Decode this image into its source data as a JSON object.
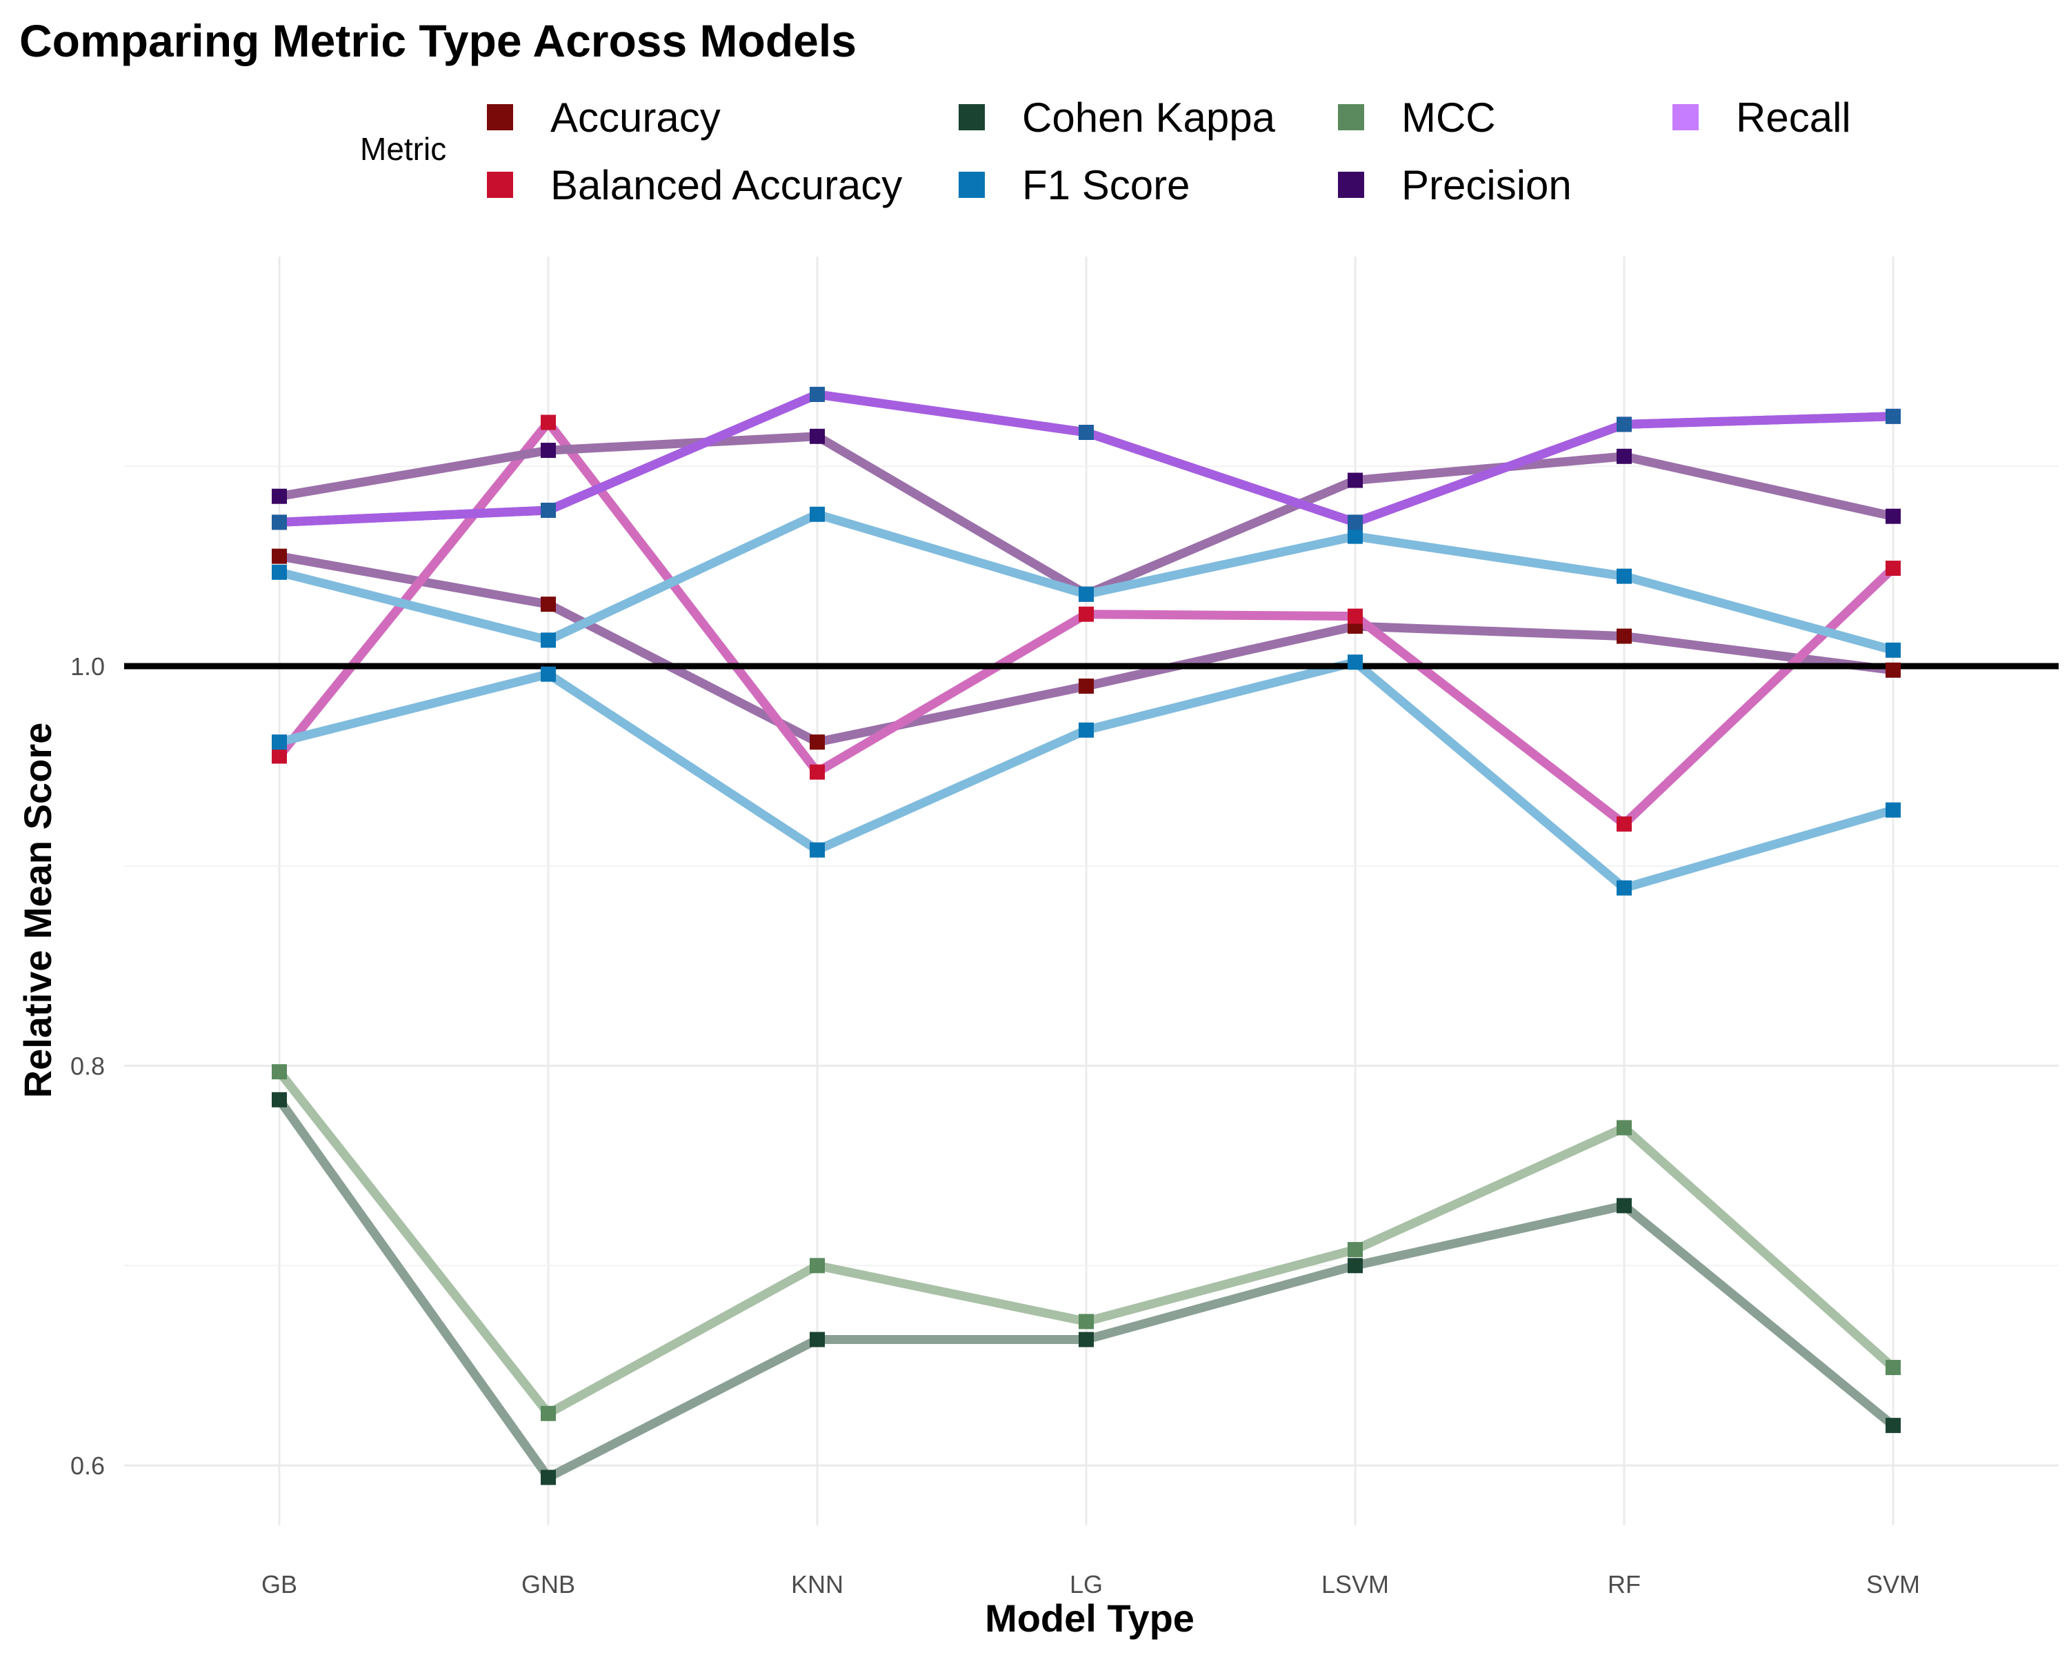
{
  "chart_data": {
    "type": "line",
    "title": "Comparing Metric Type Across Models",
    "xlabel": "Model Type",
    "ylabel": "Relative Mean Score",
    "legend_title": "Metric",
    "legend_position": "top",
    "categories": [
      "GB",
      "GNB",
      "KNN",
      "LG",
      "LSVM",
      "RF",
      "SVM"
    ],
    "ylim": [
      0.57,
      1.205
    ],
    "y_ticks": [
      0.6,
      0.8,
      1.0
    ],
    "y_tick_labels": [
      "0.6",
      "0.8",
      "1.0"
    ],
    "reference_line": 1.0,
    "grid": true,
    "series": [
      {
        "name": "Accuracy",
        "color": "#7a0a0a",
        "line_color": "#9b70a9",
        "values": [
          1.055,
          1.031,
          0.962,
          0.99,
          1.02,
          1.015,
          0.998
        ]
      },
      {
        "name": "Balanced Accuracy",
        "color": "#c8102e",
        "line_color": "#d16cbd",
        "values": [
          0.955,
          1.122,
          0.947,
          1.026,
          1.025,
          0.921,
          1.049
        ]
      },
      {
        "name": "Cohen Kappa",
        "color": "#1b4332",
        "line_color": "#8aa095",
        "values": [
          0.783,
          0.594,
          0.663,
          0.663,
          0.7,
          0.73,
          0.62
        ]
      },
      {
        "name": "F1 Score",
        "color": "#0a75b5",
        "line_color": "#7fbbdd",
        "values": [
          0.962,
          0.996,
          0.908,
          0.968,
          1.002,
          0.889,
          0.928
        ]
      },
      {
        "name": "MCC",
        "color": "#5a8a5e",
        "line_color": "#a8c0a6",
        "values": [
          0.797,
          0.626,
          0.7,
          0.672,
          0.708,
          0.769,
          0.649
        ]
      },
      {
        "name": "Precision",
        "color": "#3b0764",
        "line_color": "#9b70a9",
        "values": [
          1.085,
          1.108,
          1.115,
          1.036,
          1.093,
          1.105,
          1.075
        ]
      },
      {
        "name": "Recall",
        "color": "#c77dff",
        "line_color": "#a55ee0",
        "values": [
          1.072,
          1.078,
          1.136,
          1.117,
          1.072,
          1.121,
          1.125
        ]
      },
      {
        "name": "",
        "color": "#0a75b5",
        "line_color": "#7fbbdd",
        "values": [
          1.047,
          1.013,
          1.076,
          1.036,
          1.065,
          1.045,
          1.008
        ]
      },
      {
        "name": "",
        "color": "#1f5f9e",
        "line_color": "#a55ee0",
        "values": [
          1.072,
          1.078,
          1.136,
          1.117,
          1.072,
          1.121,
          1.125
        ]
      }
    ]
  }
}
